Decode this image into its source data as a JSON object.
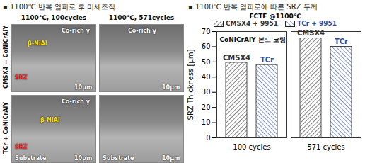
{
  "micrographs": {
    "title": "▪ 1100℃ 반복 열피로 후 미세조직",
    "columns": [
      "1100℃, 100cycles",
      "1100℃, 571cycles"
    ],
    "rows": [
      "CMSX4 + CoNiCrAlY",
      "TCr + CoNiCrAlY"
    ],
    "panels": [
      [
        {
          "labels": [
            {
              "text": "Co-rich γ",
              "color": "#ffffff"
            },
            {
              "text": "β-NiAl",
              "color": "#ffe000"
            },
            {
              "text": "SRZ",
              "color": "#ff3030"
            },
            {
              "text": "10μm",
              "color": "#ffffff"
            }
          ]
        },
        {
          "labels": [
            {
              "text": "Co-rich γ",
              "color": "#ffffff"
            },
            {
              "text": "10μm",
              "color": "#ffffff"
            }
          ]
        }
      ],
      [
        {
          "labels": [
            {
              "text": "Co-rich γ",
              "color": "#ffffff"
            },
            {
              "text": "β-NiAl",
              "color": "#ffe000"
            },
            {
              "text": "SRZ",
              "color": "#ff3030"
            },
            {
              "text": "Substrate",
              "color": "#ffffff"
            },
            {
              "text": "10μm",
              "color": "#ffffff"
            }
          ]
        },
        {
          "labels": [
            {
              "text": "Substrate",
              "color": "#ffffff"
            },
            {
              "text": "10μm",
              "color": "#ffffff"
            }
          ]
        }
      ]
    ]
  },
  "chart_data": {
    "type": "bar",
    "title": "▪ 1100℃ 반복 열피로에 따른 SRZ 두께",
    "legend_title": "FCTF @1100℃",
    "categories": [
      "100 cycles",
      "571 cycles"
    ],
    "series": [
      {
        "name": "CMSX4 + 9951",
        "color": "#333333",
        "values": [
          49.5,
          65.5
        ]
      },
      {
        "name": "TCr + 9951",
        "color": "#2e4fa0",
        "values": [
          48,
          60
        ]
      }
    ],
    "ylabel": "SRZ Thickness [μm]",
    "ylim": [
      0,
      70
    ],
    "yticks": [
      0,
      10,
      20,
      30,
      40,
      50,
      60,
      70
    ],
    "grid": false,
    "legend": "top",
    "annotations": [
      {
        "text": "CoNiCrAlY 본드 코팅"
      },
      {
        "text": "CMSX4",
        "category": "100 cycles",
        "series": "CMSX4 + 9951"
      },
      {
        "text": "TCr",
        "category": "100 cycles",
        "series": "TCr + 9951"
      },
      {
        "text": "CMSX4",
        "category": "571 cycles",
        "series": "CMSX4 + 9951"
      },
      {
        "text": "TCr",
        "category": "571 cycles",
        "series": "TCr + 9951"
      }
    ]
  }
}
